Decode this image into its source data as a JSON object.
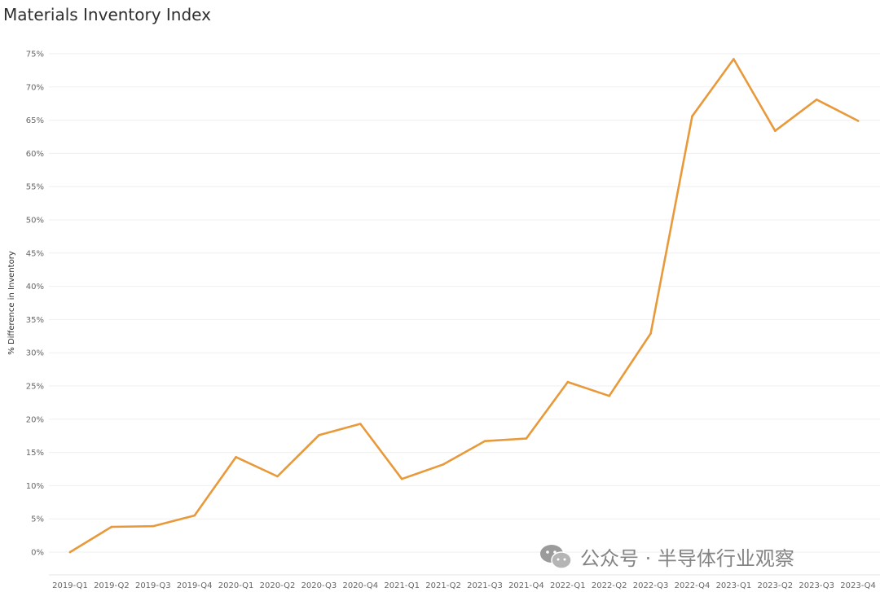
{
  "page": {
    "title": "Materials Inventory Index"
  },
  "chart_data": {
    "type": "line",
    "title": "Materials Inventory Index",
    "xlabel": "",
    "ylabel": "% Difference in Inventory",
    "ylim": [
      0,
      75
    ],
    "y_ticks": [
      "0%",
      "5%",
      "10%",
      "15%",
      "20%",
      "25%",
      "30%",
      "35%",
      "40%",
      "45%",
      "50%",
      "55%",
      "60%",
      "65%",
      "70%",
      "75%"
    ],
    "grid": true,
    "line_color": "#e8993a",
    "categories": [
      "2019-Q1",
      "2019-Q2",
      "2019-Q3",
      "2019-Q4",
      "2020-Q1",
      "2020-Q2",
      "2020-Q3",
      "2020-Q4",
      "2021-Q1",
      "2021-Q2",
      "2021-Q3",
      "2021-Q4",
      "2022-Q1",
      "2022-Q2",
      "2022-Q3",
      "2022-Q4",
      "2023-Q1",
      "2023-Q2",
      "2023-Q3",
      "2023-Q4"
    ],
    "series": [
      {
        "values": [
          0,
          3.8,
          3.9,
          5.5,
          14.3,
          11.4,
          17.6,
          19.3,
          11.0,
          13.2,
          16.7,
          17.1,
          25.6,
          23.5,
          32.9,
          65.6,
          74.2,
          63.4,
          68.1,
          64.9
        ]
      }
    ]
  },
  "watermark": {
    "text": "公众号 · 半导体行业观察",
    "icon": "wechat-icon"
  }
}
